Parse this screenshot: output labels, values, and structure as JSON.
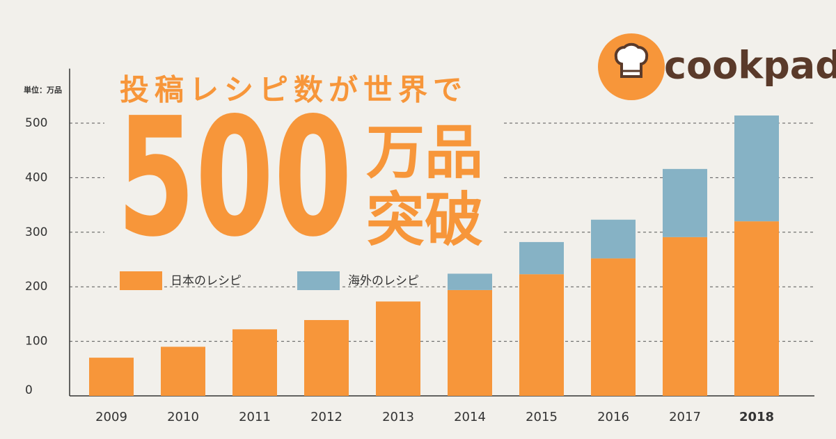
{
  "logo": "cookpad",
  "chart_data": {
    "type": "bar",
    "stacked": true,
    "title": "投稿レシピ数が世界で",
    "annotations": [
      "500",
      "万品",
      "突破"
    ],
    "unit_label": "単位：万品",
    "categories": [
      "2009",
      "2010",
      "2011",
      "2012",
      "2013",
      "2014",
      "2015",
      "2016",
      "2017",
      "2018"
    ],
    "series": [
      {
        "name": "日本のレシピ",
        "color": "#f7963a",
        "values": [
          70,
          90,
          122,
          139,
          173,
          194,
          223,
          252,
          291,
          320
        ]
      },
      {
        "name": "海外のレシピ",
        "color": "#86b2c5",
        "values": [
          null,
          null,
          null,
          null,
          null,
          30,
          59,
          71,
          125,
          194
        ]
      }
    ],
    "ylim": [
      0,
      600
    ],
    "yticks": [
      0,
      100,
      200,
      300,
      400,
      500
    ],
    "grid": true
  }
}
